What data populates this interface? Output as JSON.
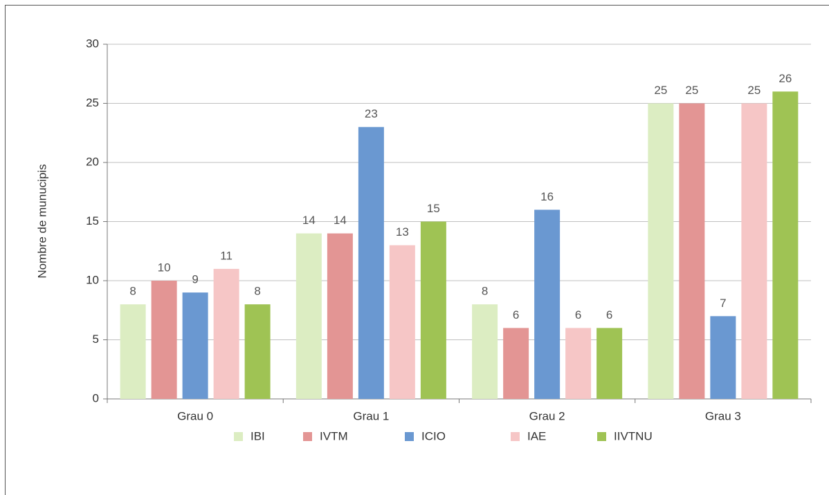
{
  "chart_data": {
    "type": "bar",
    "categories": [
      "Grau 0",
      "Grau 1",
      "Grau 2",
      "Grau 3"
    ],
    "series": [
      {
        "name": "IBI",
        "color": "#dcedc2",
        "values": [
          8,
          14,
          8,
          25
        ]
      },
      {
        "name": "IVTM",
        "color": "#e39594",
        "values": [
          10,
          14,
          6,
          25
        ]
      },
      {
        "name": "ICIO",
        "color": "#6a98d1",
        "values": [
          9,
          23,
          16,
          7
        ]
      },
      {
        "name": "IAE",
        "color": "#f6c6c6",
        "values": [
          11,
          13,
          6,
          25
        ]
      },
      {
        "name": "IIVTNU",
        "color": "#9fc354",
        "values": [
          8,
          15,
          6,
          26
        ]
      }
    ],
    "y_label": "Nombre de munucipis",
    "ylim": [
      0,
      30
    ],
    "yticks": [
      0,
      5,
      10,
      15,
      20,
      25,
      30
    ],
    "grid": true,
    "legend": "bottom"
  }
}
